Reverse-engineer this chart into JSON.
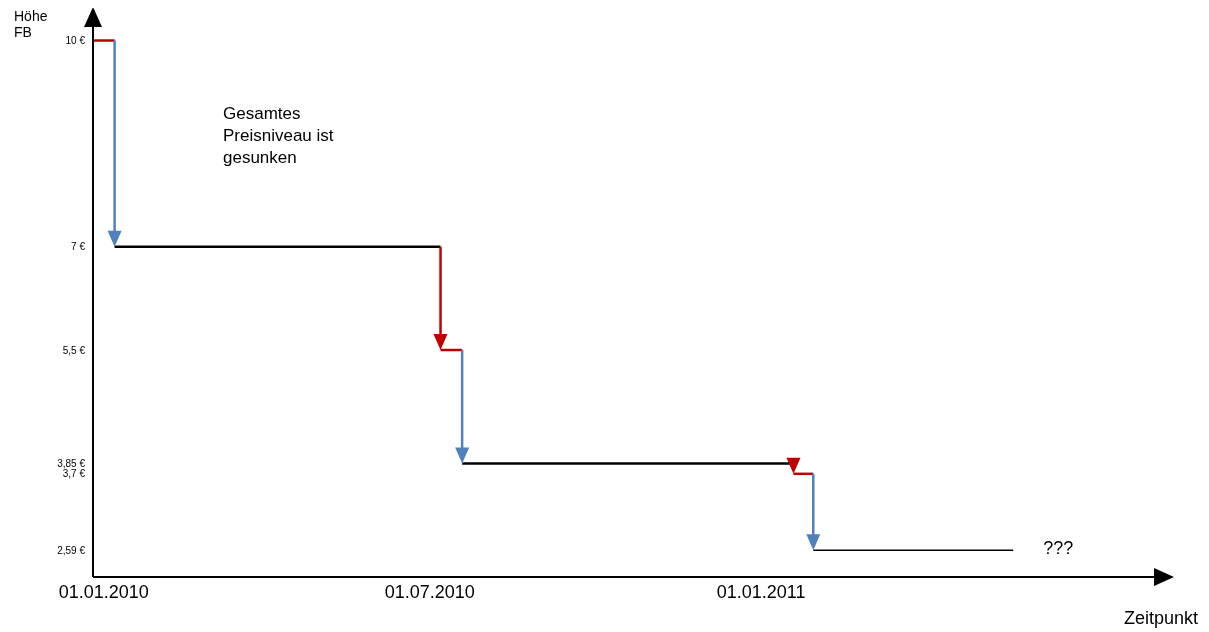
{
  "chart_data": {
    "type": "line",
    "ylabel": "Höhe FB",
    "xlabel": "Zeitpunkt",
    "annotations": [
      "Gesamtes Preisniveau ist gesunken",
      "???"
    ],
    "xlim": [
      "2009-12-26",
      "2011-08-15"
    ],
    "xticks": [
      {
        "value": "2010-01-01",
        "label": "01.01.2010"
      },
      {
        "value": "2010-07-01",
        "label": "01.07.2010"
      },
      {
        "value": "2011-01-01",
        "label": "01.01.2011"
      }
    ],
    "ylim": [
      2.2,
      10.4
    ],
    "yticks": [
      {
        "value": 10,
        "label": "10 €"
      },
      {
        "value": 7,
        "label": "7 €"
      },
      {
        "value": 5.5,
        "label": "5,5 €"
      },
      {
        "value": 3.85,
        "label": "3,85 €"
      },
      {
        "value": 3.7,
        "label": "3,7 €"
      },
      {
        "value": 2.59,
        "label": "2,59 €"
      }
    ],
    "series": [
      {
        "color": "#c00000",
        "x": [
          "2009-12-26",
          "2010-01-07"
        ],
        "values": [
          10,
          10
        ]
      },
      {
        "color": "#000000",
        "x": [
          "2010-01-07",
          "2010-07-07"
        ],
        "values": [
          7,
          7
        ]
      },
      {
        "color": "#c00000",
        "x": [
          "2010-07-07",
          "2010-07-19"
        ],
        "values": [
          5.5,
          5.5
        ]
      },
      {
        "color": "#000000",
        "x": [
          "2010-07-19",
          "2011-01-19"
        ],
        "values": [
          3.85,
          3.85
        ]
      },
      {
        "color": "#c00000",
        "x": [
          "2011-01-19",
          "2011-01-30"
        ],
        "values": [
          3.7,
          3.7
        ]
      },
      {
        "color": "#000000",
        "x": [
          "2011-01-30",
          "2011-05-21"
        ],
        "values": [
          2.59,
          2.59
        ]
      }
    ]
  }
}
